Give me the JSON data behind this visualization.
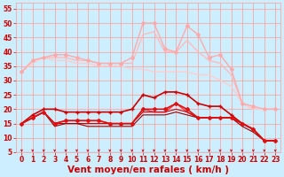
{
  "xlabel": "Vent moyen/en rafales ( km/h )",
  "xlim": [
    -0.5,
    23.5
  ],
  "ylim": [
    5,
    57
  ],
  "yticks": [
    5,
    10,
    15,
    20,
    25,
    30,
    35,
    40,
    45,
    50,
    55
  ],
  "xticks": [
    0,
    1,
    2,
    3,
    4,
    5,
    6,
    7,
    8,
    9,
    10,
    11,
    12,
    13,
    14,
    15,
    16,
    17,
    18,
    19,
    20,
    21,
    22,
    23
  ],
  "bg_color": "#cceeff",
  "grid_color": "#ff9999",
  "series": [
    {
      "x": [
        0,
        1,
        2,
        3,
        4,
        5,
        6,
        7,
        8,
        9,
        10,
        11,
        12,
        13,
        14,
        15,
        16,
        17,
        18,
        19,
        20,
        21,
        22,
        23
      ],
      "y": [
        33,
        37,
        38,
        39,
        39,
        38,
        37,
        36,
        36,
        36,
        38,
        50,
        50,
        41,
        40,
        49,
        46,
        38,
        39,
        34,
        22,
        21,
        20,
        20
      ],
      "color": "#ffaaaa",
      "lw": 1.0,
      "marker": "D",
      "ms": 2.0
    },
    {
      "x": [
        0,
        1,
        2,
        3,
        4,
        5,
        6,
        7,
        8,
        9,
        10,
        11,
        12,
        13,
        14,
        15,
        16,
        17,
        18,
        19,
        20,
        21,
        22,
        23
      ],
      "y": [
        33,
        37,
        38,
        38,
        38,
        37,
        37,
        36,
        36,
        36,
        36,
        46,
        47,
        40,
        40,
        44,
        40,
        37,
        36,
        32,
        22,
        20,
        20,
        20
      ],
      "color": "#ffbbbb",
      "lw": 1.0,
      "marker": null,
      "ms": 0
    },
    {
      "x": [
        0,
        1,
        2,
        3,
        4,
        5,
        6,
        7,
        8,
        9,
        10,
        11,
        12,
        13,
        14,
        15,
        16,
        17,
        18,
        19,
        20,
        21,
        22,
        23
      ],
      "y": [
        33,
        36,
        38,
        37,
        37,
        36,
        36,
        35,
        35,
        35,
        34,
        34,
        33,
        33,
        33,
        33,
        32,
        32,
        30,
        28,
        22,
        20,
        20,
        20
      ],
      "color": "#ffcccc",
      "lw": 1.0,
      "marker": null,
      "ms": 0
    },
    {
      "x": [
        0,
        1,
        2,
        3,
        4,
        5,
        6,
        7,
        8,
        9,
        10,
        11,
        12,
        13,
        14,
        15,
        16,
        17,
        18,
        19,
        20,
        21,
        22,
        23
      ],
      "y": [
        15,
        18,
        20,
        20,
        19,
        19,
        19,
        19,
        19,
        19,
        20,
        25,
        24,
        26,
        26,
        25,
        22,
        21,
        21,
        18,
        15,
        13,
        9,
        9
      ],
      "color": "#cc0000",
      "lw": 1.2,
      "marker": "+",
      "ms": 3.5
    },
    {
      "x": [
        0,
        1,
        2,
        3,
        4,
        5,
        6,
        7,
        8,
        9,
        10,
        11,
        12,
        13,
        14,
        15,
        16,
        17,
        18,
        19,
        20,
        21,
        22,
        23
      ],
      "y": [
        15,
        17,
        19,
        15,
        16,
        16,
        16,
        16,
        15,
        15,
        15,
        20,
        20,
        20,
        22,
        20,
        17,
        17,
        17,
        17,
        15,
        13,
        9,
        9
      ],
      "color": "#dd1111",
      "lw": 1.2,
      "marker": "D",
      "ms": 2.0
    },
    {
      "x": [
        0,
        1,
        2,
        3,
        4,
        5,
        6,
        7,
        8,
        9,
        10,
        11,
        12,
        13,
        14,
        15,
        16,
        17,
        18,
        19,
        20,
        21,
        22,
        23
      ],
      "y": [
        15,
        17,
        19,
        15,
        16,
        16,
        16,
        16,
        15,
        15,
        15,
        20,
        19,
        19,
        22,
        19,
        17,
        17,
        17,
        17,
        15,
        13,
        9,
        9
      ],
      "color": "#ff3333",
      "lw": 1.0,
      "marker": null,
      "ms": 0
    },
    {
      "x": [
        0,
        1,
        2,
        3,
        4,
        5,
        6,
        7,
        8,
        9,
        10,
        11,
        12,
        13,
        14,
        15,
        16,
        17,
        18,
        19,
        20,
        21,
        22,
        23
      ],
      "y": [
        15,
        17,
        19,
        15,
        15,
        15,
        15,
        15,
        15,
        15,
        15,
        19,
        19,
        19,
        20,
        19,
        17,
        17,
        17,
        17,
        15,
        13,
        9,
        9
      ],
      "color": "#cc0000",
      "lw": 0.8,
      "marker": null,
      "ms": 0
    },
    {
      "x": [
        0,
        1,
        2,
        3,
        4,
        5,
        6,
        7,
        8,
        9,
        10,
        11,
        12,
        13,
        14,
        15,
        16,
        17,
        18,
        19,
        20,
        21,
        22,
        23
      ],
      "y": [
        15,
        17,
        19,
        14,
        15,
        15,
        14,
        14,
        14,
        14,
        14,
        18,
        18,
        18,
        19,
        18,
        17,
        17,
        17,
        17,
        14,
        12,
        9,
        9
      ],
      "color": "#990000",
      "lw": 0.8,
      "marker": null,
      "ms": 0
    }
  ],
  "arrow_color": "#cc0000",
  "tick_label_color": "#cc0000",
  "xlabel_color": "#cc0000",
  "tick_fontsize": 5.5,
  "xlabel_fontsize": 7.5
}
